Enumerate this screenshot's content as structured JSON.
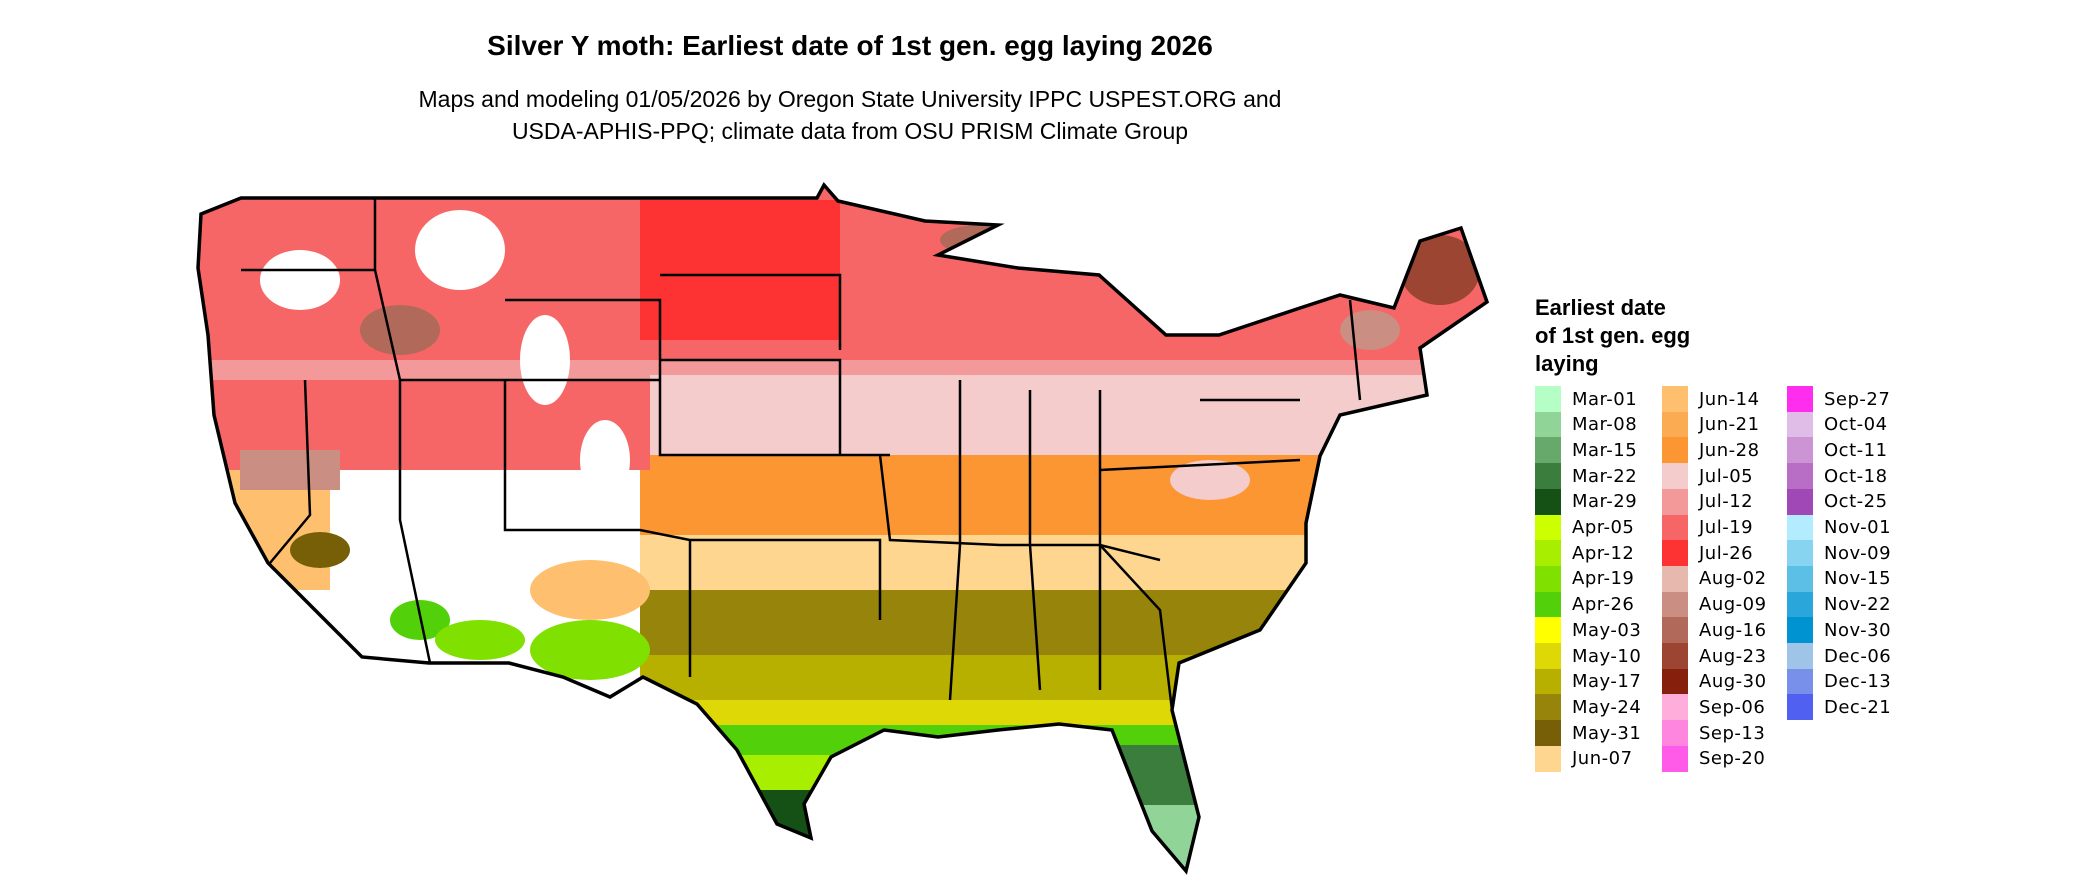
{
  "title": "Silver Y moth: Earliest date of 1st gen. egg laying 2026",
  "subtitle_lines": [
    "Maps and modeling 01/05/2026 by Oregon State University IPPC USPEST.ORG and",
    "USDA-APHIS-PPQ; climate data from OSU PRISM Climate Group"
  ],
  "legend": {
    "title_lines": [
      "Earliest date",
      "of 1st gen. egg",
      "laying"
    ],
    "items": [
      {
        "label": "Mar-01",
        "color": "#b5ffc6"
      },
      {
        "label": "Mar-08",
        "color": "#90d498"
      },
      {
        "label": "Mar-15",
        "color": "#66a96a"
      },
      {
        "label": "Mar-22",
        "color": "#3b7d3c"
      },
      {
        "label": "Mar-29",
        "color": "#155015"
      },
      {
        "label": "Apr-05",
        "color": "#ccff00"
      },
      {
        "label": "Apr-12",
        "color": "#a8ee00"
      },
      {
        "label": "Apr-19",
        "color": "#80e000"
      },
      {
        "label": "Apr-26",
        "color": "#52d10a"
      },
      {
        "label": "May-03",
        "color": "#ffff00"
      },
      {
        "label": "May-10",
        "color": "#ddd806"
      },
      {
        "label": "May-17",
        "color": "#b8b000"
      },
      {
        "label": "May-24",
        "color": "#96850a"
      },
      {
        "label": "May-31",
        "color": "#775f08"
      },
      {
        "label": "Jun-07",
        "color": "#fed68f"
      },
      {
        "label": "Jun-14",
        "color": "#fec06e"
      },
      {
        "label": "Jun-21",
        "color": "#fbab52"
      },
      {
        "label": "Jun-28",
        "color": "#fb9633"
      },
      {
        "label": "Jul-05",
        "color": "#f4cccc"
      },
      {
        "label": "Jul-12",
        "color": "#f49999"
      },
      {
        "label": "Jul-19",
        "color": "#f76666"
      },
      {
        "label": "Jul-26",
        "color": "#fd3333"
      },
      {
        "label": "Aug-02",
        "color": "#e7b8ae"
      },
      {
        "label": "Aug-09",
        "color": "#cb8e82"
      },
      {
        "label": "Aug-16",
        "color": "#b16a5a"
      },
      {
        "label": "Aug-23",
        "color": "#9b4532"
      },
      {
        "label": "Aug-30",
        "color": "#86200d"
      },
      {
        "label": "Sep-06",
        "color": "#ffaedc"
      },
      {
        "label": "Sep-13",
        "color": "#ff86df"
      },
      {
        "label": "Sep-20",
        "color": "#ff5ae8"
      },
      {
        "label": "Sep-27",
        "color": "#ff2eef"
      },
      {
        "label": "Oct-04",
        "color": "#e0bde6"
      },
      {
        "label": "Oct-11",
        "color": "#cc94d4"
      },
      {
        "label": "Oct-18",
        "color": "#b76ec4"
      },
      {
        "label": "Oct-25",
        "color": "#a049b6"
      },
      {
        "label": "Nov-01",
        "color": "#b3ecff"
      },
      {
        "label": "Nov-09",
        "color": "#86d4f0"
      },
      {
        "label": "Nov-15",
        "color": "#5bbfe6"
      },
      {
        "label": "Nov-22",
        "color": "#2ba6da"
      },
      {
        "label": "Nov-30",
        "color": "#0093d2"
      },
      {
        "label": "Dec-06",
        "color": "#a0c4e8"
      },
      {
        "label": "Dec-13",
        "color": "#7890ea"
      },
      {
        "label": "Dec-21",
        "color": "#5060f0"
      }
    ]
  }
}
